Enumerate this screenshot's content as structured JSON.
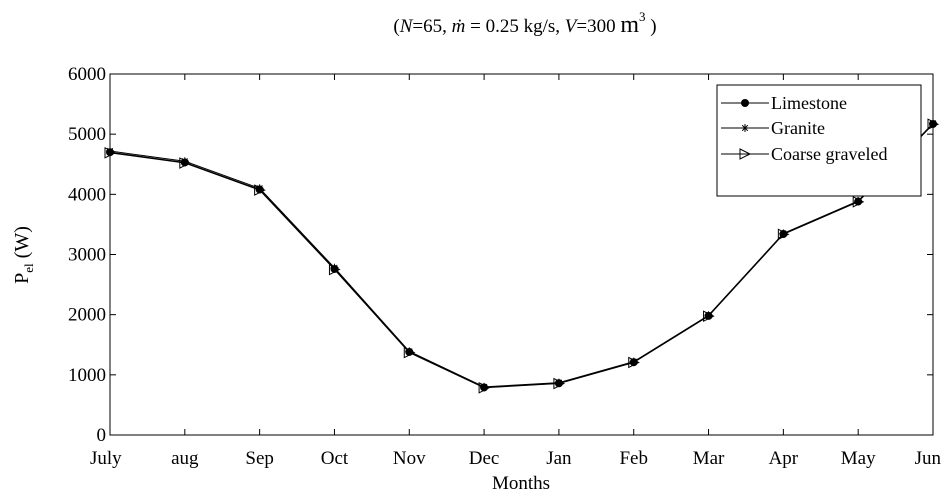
{
  "chart_data": {
    "type": "line",
    "title_parts": {
      "open": "(",
      "n_var": "N",
      "n_val": "=65, ",
      "mdot_var": "ṁ",
      "mdot_val": " = 0.25 kg/s, ",
      "v_var": "V",
      "v_val": "=300 ",
      "v_unit": "m",
      "v_exp": "3",
      "close": " )"
    },
    "xlabel": "Months",
    "ylabel_main": "P",
    "ylabel_sub": "el",
    "ylabel_unit": " (W)",
    "categories": [
      "July",
      "aug",
      "Sep",
      "Oct",
      "Nov",
      "Dec",
      "Jan",
      "Feb",
      "Mar",
      "Apr",
      "May",
      "Jun"
    ],
    "ylim": [
      0,
      6000
    ],
    "yticks": [
      0,
      1000,
      2000,
      3000,
      4000,
      5000,
      6000
    ],
    "grid": false,
    "legend_position": "top-right",
    "series": [
      {
        "name": "Limestone",
        "marker": "filled-circle",
        "color": "#000000",
        "values": [
          4700,
          4530,
          4080,
          2760,
          1380,
          790,
          860,
          1210,
          1980,
          3340,
          3880,
          5170
        ]
      },
      {
        "name": "Granite",
        "marker": "asterisk",
        "color": "#000000",
        "values": [
          4720,
          4550,
          4100,
          2780,
          1390,
          800,
          870,
          1220,
          1990,
          3350,
          3890,
          5180
        ]
      },
      {
        "name": "Coarse graveled",
        "marker": "triangle-right",
        "color": "#000000",
        "values": [
          4690,
          4520,
          4070,
          2750,
          1370,
          785,
          855,
          1205,
          1975,
          3335,
          3875,
          5165
        ]
      }
    ]
  }
}
